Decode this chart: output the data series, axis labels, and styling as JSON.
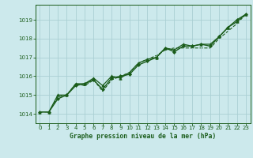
{
  "background_color": "#cce9ec",
  "grid_color": "#aacfd4",
  "line_color": "#1a5c1a",
  "text_color": "#1a5c1a",
  "xlabel": "Graphe pression niveau de la mer (hPa)",
  "xlim": [
    -0.5,
    23.5
  ],
  "ylim": [
    1013.5,
    1019.8
  ],
  "yticks": [
    1014,
    1015,
    1016,
    1017,
    1018,
    1019
  ],
  "xticks": [
    0,
    1,
    2,
    3,
    4,
    5,
    6,
    7,
    8,
    9,
    10,
    11,
    12,
    13,
    14,
    15,
    16,
    17,
    18,
    19,
    20,
    21,
    22,
    23
  ],
  "series1_x": [
    0,
    1,
    2,
    3,
    4,
    5,
    6,
    7,
    8,
    9,
    10,
    11,
    12,
    13,
    14,
    15,
    16,
    17,
    18,
    19,
    20,
    21,
    22,
    23
  ],
  "series1_y": [
    1014.1,
    1014.1,
    1014.8,
    1015.0,
    1015.5,
    1015.6,
    1015.8,
    1015.3,
    1015.9,
    1016.0,
    1016.1,
    1016.6,
    1016.8,
    1017.0,
    1017.5,
    1017.3,
    1017.6,
    1017.6,
    1017.7,
    1017.6,
    1018.1,
    1018.6,
    1019.0,
    1019.3
  ],
  "series2_x": [
    0,
    1,
    2,
    3,
    4,
    5,
    6,
    7,
    8,
    9,
    10,
    11,
    12,
    13,
    14,
    15,
    16,
    17,
    18,
    19,
    20,
    21,
    22,
    23
  ],
  "series2_y": [
    1014.1,
    1014.1,
    1014.9,
    1015.0,
    1015.6,
    1015.5,
    1015.8,
    1015.2,
    1015.8,
    1016.0,
    1016.2,
    1016.7,
    1016.9,
    1017.1,
    1017.4,
    1017.5,
    1017.5,
    1017.5,
    1017.5,
    1017.5,
    1018.0,
    1018.4,
    1018.8,
    1019.3
  ],
  "series3_x": [
    0,
    1,
    2,
    3,
    4,
    5,
    6,
    7,
    8,
    9,
    10,
    11,
    12,
    13,
    14,
    15,
    16,
    17,
    18,
    19,
    20,
    21,
    22,
    23
  ],
  "series3_y": [
    1014.1,
    1014.1,
    1015.0,
    1015.0,
    1015.6,
    1015.6,
    1015.9,
    1015.5,
    1016.0,
    1015.9,
    1016.2,
    1016.7,
    1016.9,
    1017.0,
    1017.5,
    1017.4,
    1017.7,
    1017.6,
    1017.7,
    1017.7,
    1018.1,
    1018.6,
    1018.9,
    1019.3
  ]
}
